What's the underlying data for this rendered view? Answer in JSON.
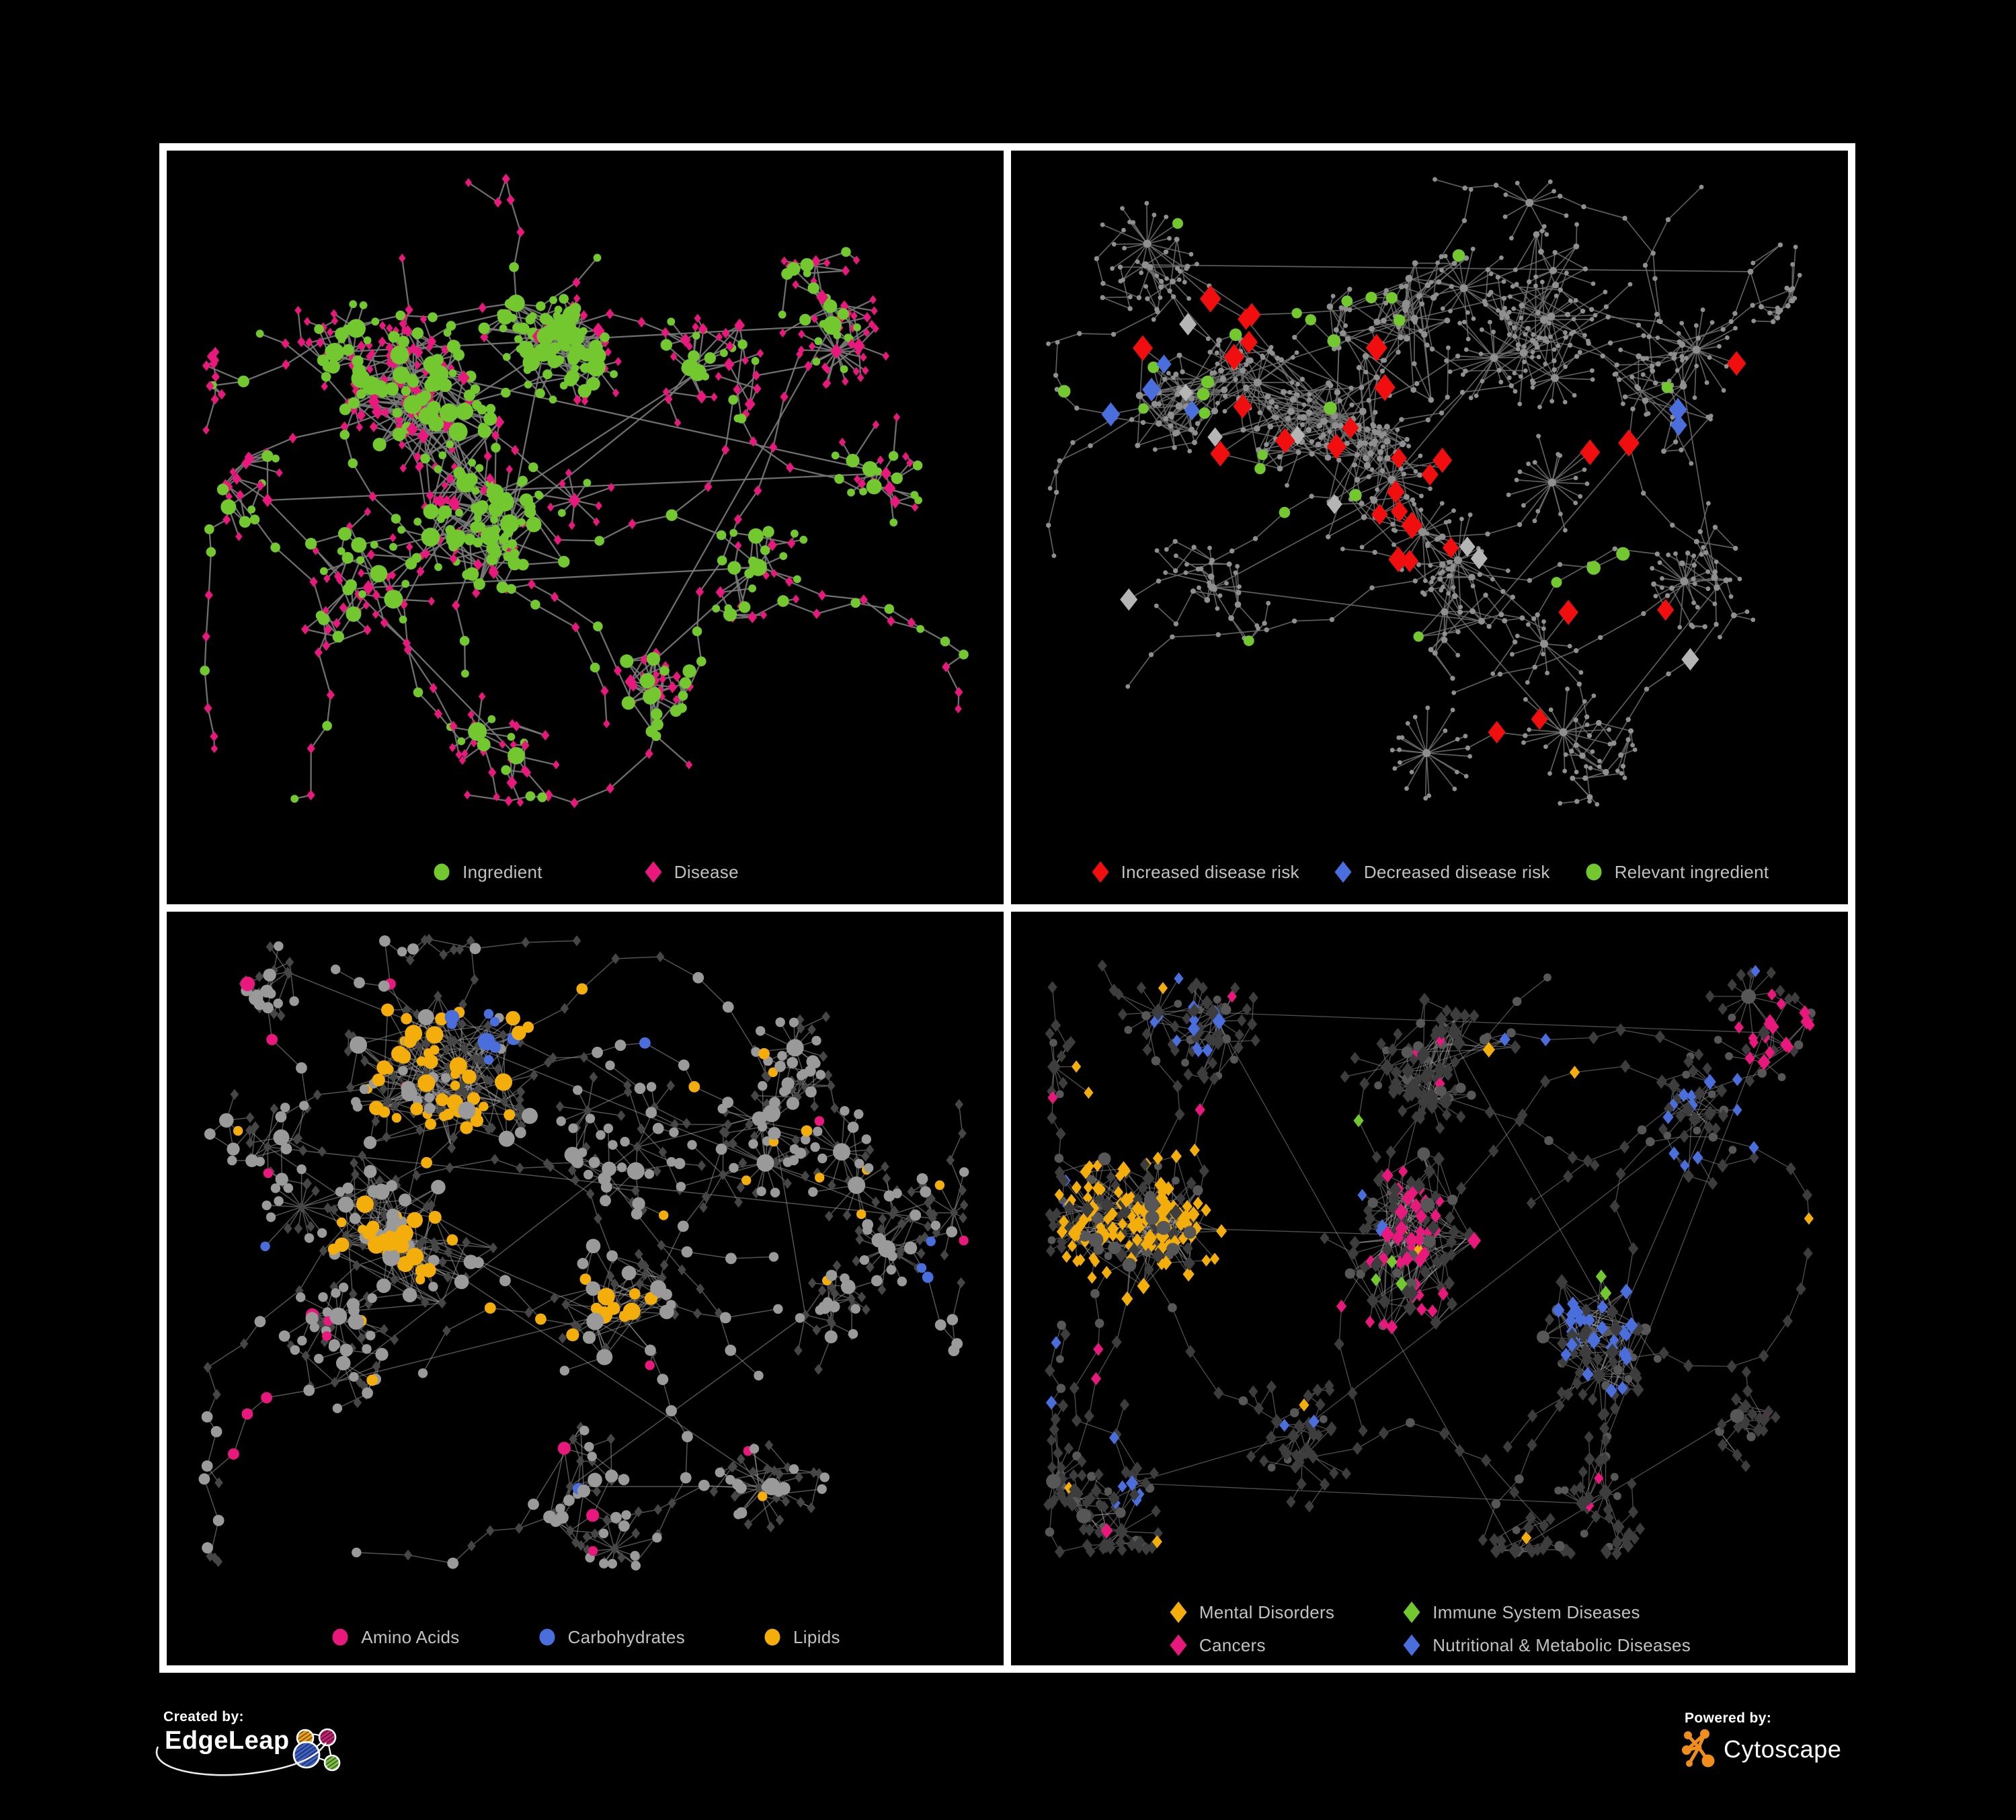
{
  "poster": {
    "background": "#000000",
    "panel_border": "#ffffff",
    "legend_text_color": "#c1c1c1"
  },
  "branding": {
    "created_by_label": "Created by:",
    "edgeleap_name": "EdgeLeap",
    "powered_by_label": "Powered by:",
    "cytoscape_name": "Cytoscape",
    "icons": {
      "edgeleap_logo": "hatched-network-circles",
      "cytoscape_logo": "orange-network-glyph"
    }
  },
  "palette": {
    "green": "#72c82e",
    "pink": "#e8187c",
    "red": "#f10e0e",
    "blue": "#4a6fdc",
    "orange": "#f4ae0c",
    "silver": "#b5b5b5",
    "grayNode": "#9a9a9a",
    "trBase": "#8f8f8f",
    "dimDiamond": "#464646",
    "dimDiamondBR": "#3d3d3d",
    "dimCircle": "#575757",
    "edgeTL": "#7a7a7a",
    "edgeTR": "#6f6f6f",
    "edgeBL": "#989898",
    "edgeBR": "#9d9d9d"
  },
  "panels": [
    {
      "id": "ingredient-disease",
      "legend": [
        {
          "label": "Ingredient",
          "shape": "circle",
          "color": "#72c82e"
        },
        {
          "label": "Disease",
          "shape": "diamond",
          "color": "#e8187c"
        }
      ],
      "net": {
        "mode": "tl",
        "seed": 11,
        "bounds": [
          55,
          40,
          1190,
          975
        ],
        "step": 50,
        "clusters": [
          [
            420,
            390,
            110,
            150,
            70
          ],
          [
            560,
            300,
            60,
            95,
            50
          ],
          [
            510,
            555,
            55,
            115,
            25
          ],
          [
            790,
            330,
            40,
            100,
            0
          ],
          [
            300,
            650,
            40,
            110,
            0
          ],
          [
            880,
            620,
            30,
            85,
            0
          ],
          [
            690,
            790,
            30,
            85,
            12
          ],
          [
            990,
            260,
            35,
            115,
            0
          ],
          [
            250,
            300,
            35,
            100,
            0
          ],
          [
            1070,
            480,
            25,
            85,
            0
          ],
          [
            150,
            520,
            20,
            70,
            0
          ],
          [
            520,
            900,
            22,
            80,
            0
          ]
        ],
        "chains": 26,
        "fans": 14,
        "fanMin": 6,
        "fanMax": 14,
        "fanR": 42,
        "edge": [
          "edgeTL",
          2.3,
          0.9
        ],
        "zones": [
          [
            547,
            303,
            85,
            "green",
            0.85
          ],
          [
            500,
            545,
            60,
            "green",
            0.7
          ],
          [
            800,
            735,
            50,
            "green",
            0.9
          ],
          [
            360,
            390,
            70,
            "pink",
            0.35
          ]
        ]
      }
    },
    {
      "id": "disease-risk",
      "legend": [
        {
          "label": "Increased disease risk",
          "shape": "diamond",
          "color": "#f10e0e"
        },
        {
          "label": "Decreased disease risk",
          "shape": "diamond",
          "color": "#4a6fdc"
        },
        {
          "label": "Relevant ingredient",
          "shape": "circle",
          "color": "#72c82e"
        }
      ],
      "net": {
        "mode": "tr",
        "seed": 7,
        "bounds": [
          55,
          40,
          1190,
          975
        ],
        "step": 50,
        "base": "trBase",
        "clusters": [
          [
            420,
            370,
            100,
            150,
            70
          ],
          [
            260,
            360,
            55,
            110,
            40
          ],
          [
            600,
            250,
            55,
            125,
            30
          ],
          [
            810,
            200,
            40,
            105,
            8
          ],
          [
            540,
            520,
            50,
            120,
            12
          ],
          [
            300,
            650,
            38,
            110,
            0
          ],
          [
            700,
            700,
            40,
            100,
            10
          ],
          [
            1000,
            350,
            38,
            110,
            0
          ],
          [
            1050,
            650,
            28,
            90,
            0
          ],
          [
            850,
            900,
            28,
            95,
            0
          ],
          [
            200,
            170,
            28,
            90,
            0
          ],
          [
            1100,
            180,
            22,
            80,
            0
          ]
        ],
        "chains": 30,
        "fans": 18,
        "fanMin": 8,
        "fanMax": 22,
        "fanR": 55,
        "edge": [
          "edgeTR",
          1.7,
          0.85
        ],
        "zones": [],
        "highlights": [
          {
            "shape": "diamond",
            "color": "red",
            "s": 14,
            "pts": [
              [
                430,
                400,
                11,
                150
              ],
              [
                560,
                520,
                6,
                110
              ],
              [
                300,
                295,
                3,
                80
              ],
              [
                640,
                440,
                2,
                50
              ],
              [
                905,
                440,
                2,
                50
              ],
              [
                760,
                880,
                2,
                60
              ],
              [
                1120,
                300,
                1,
                30
              ],
              [
                830,
                680,
                1,
                40
              ],
              [
                1010,
                680,
                1,
                40
              ],
              [
                170,
                320,
                1,
                30
              ]
            ]
          },
          {
            "shape": "diamond",
            "color": "blue",
            "s": 13,
            "pts": [
              [
                200,
                345,
                4,
                70
              ],
              [
                1008,
                385,
                2,
                26
              ]
            ]
          },
          {
            "shape": "diamond",
            "color": "silver",
            "s": 12,
            "pts": [
              [
                430,
                390,
                5,
                170
              ],
              [
                620,
                650,
                2,
                100
              ],
              [
                185,
                620,
                1,
                40
              ],
              [
                950,
                745,
                1,
                50
              ]
            ]
          },
          {
            "shape": "circle",
            "color": "green",
            "s": 9,
            "pts": [
              [
                420,
                380,
                10,
                160
              ],
              [
                295,
                300,
                5,
                100
              ],
              [
                560,
                250,
                3,
                90
              ],
              [
                880,
                630,
                3,
                45
              ],
              [
                990,
                380,
                1,
                30
              ],
              [
                140,
                350,
                1,
                30
              ],
              [
                330,
                800,
                1,
                30
              ],
              [
                560,
                750,
                1,
                30
              ],
              [
                240,
                130,
                1,
                30
              ],
              [
                640,
                160,
                1,
                30
              ]
            ]
          }
        ]
      }
    },
    {
      "id": "nutrient-classes",
      "legend": [
        {
          "label": "Amino Acids",
          "shape": "circle",
          "color": "#e8187c"
        },
        {
          "label": "Carbohydrates",
          "shape": "circle",
          "color": "#4a6fdc"
        },
        {
          "label": "Lipids",
          "shape": "circle",
          "color": "#f4ae0c"
        }
      ],
      "net": {
        "mode": "bl",
        "seed": 23,
        "bounds": [
          55,
          40,
          1190,
          975
        ],
        "step": 50,
        "clusters": [
          [
            400,
            250,
            110,
            150,
            85
          ],
          [
            350,
            470,
            95,
            140,
            70
          ],
          [
            650,
            600,
            45,
            105,
            28
          ],
          [
            250,
            700,
            38,
            110,
            0
          ],
          [
            700,
            350,
            38,
            110,
            0
          ],
          [
            900,
            300,
            35,
            105,
            0
          ],
          [
            950,
            600,
            28,
            90,
            0
          ],
          [
            600,
            855,
            32,
            100,
            8
          ],
          [
            900,
            855,
            28,
            90,
            0
          ],
          [
            150,
            350,
            28,
            90,
            0
          ],
          [
            1080,
            450,
            20,
            70,
            0
          ],
          [
            180,
            90,
            20,
            70,
            0
          ]
        ],
        "chains": 26,
        "fans": 16,
        "fanMin": 7,
        "fanMax": 18,
        "fanR": 48,
        "edge": [
          "edgeBL",
          1.5,
          0.55
        ],
        "zones": [
          [
            470,
            185,
            62,
            "blue",
            0.38
          ],
          [
            420,
            230,
            135,
            "orange",
            0.6
          ],
          [
            350,
            470,
            115,
            "orange",
            0.42
          ],
          [
            650,
            600,
            62,
            "orange",
            0.85
          ],
          [
            150,
            780,
            70,
            "pink",
            0.5
          ],
          [
            560,
            770,
            45,
            "pink",
            0.55
          ],
          [
            1100,
            755,
            65,
            "pink",
            0.5
          ],
          [
            730,
            80,
            45,
            "pink",
            0.7
          ],
          [
            105,
            90,
            40,
            "pink",
            0.6
          ],
          [
            35,
            148,
            26,
            "blue",
            1
          ],
          [
            1145,
            520,
            35,
            "blue",
            0.9
          ],
          [
            430,
            645,
            30,
            "blue",
            0.5
          ],
          [
            900,
            300,
            140,
            "orange",
            0.12
          ],
          [
            0,
            0,
            2000,
            "orange",
            0.05
          ],
          [
            0,
            0,
            2000,
            "pink",
            0.045
          ],
          [
            0,
            0,
            2000,
            "blue",
            0.02
          ]
        ]
      }
    },
    {
      "id": "disease-categories",
      "legend": [
        {
          "label": "Mental Disorders",
          "shape": "diamond",
          "color": "#f4ae0c"
        },
        {
          "label": "Immune System Diseases",
          "shape": "diamond",
          "color": "#72c82e"
        },
        {
          "label": "Cancers",
          "shape": "diamond",
          "color": "#e8187c"
        },
        {
          "label": "Nutritional & Metabolic Diseases",
          "shape": "diamond",
          "color": "#4a6fdc"
        }
      ],
      "net": {
        "mode": "br",
        "seed": 41,
        "bounds": [
          55,
          35,
          1190,
          955
        ],
        "step": 48,
        "clusters": [
          [
            230,
            470,
            115,
            155,
            95
          ],
          [
            560,
            480,
            100,
            150,
            70
          ],
          [
            640,
            160,
            55,
            130,
            35
          ],
          [
            900,
            620,
            55,
            105,
            55
          ],
          [
            1040,
            300,
            38,
            100,
            6
          ],
          [
            420,
            780,
            38,
            110,
            0
          ],
          [
            180,
            850,
            32,
            100,
            0
          ],
          [
            850,
            880,
            32,
            100,
            0
          ],
          [
            1120,
            180,
            26,
            80,
            0
          ],
          [
            300,
            150,
            38,
            110,
            0
          ],
          [
            750,
            950,
            22,
            80,
            0
          ],
          [
            1080,
            750,
            22,
            80,
            0
          ]
        ],
        "chains": 26,
        "fans": 16,
        "fanMin": 7,
        "fanMax": 18,
        "fanR": 46,
        "edge": [
          "edgeBR",
          1.3,
          0.5
        ],
        "zones": [
          [
            540,
            320,
            32,
            "green",
            0.9
          ],
          [
            565,
            545,
            26,
            "green",
            0.9
          ],
          [
            700,
            425,
            26,
            "green",
            0.9
          ],
          [
            880,
            555,
            22,
            "green",
            0.8
          ],
          [
            420,
            950,
            26,
            "green",
            0.9
          ],
          [
            655,
            115,
            22,
            "green",
            0.8
          ],
          [
            230,
            470,
            155,
            "orange",
            0.75
          ],
          [
            120,
            255,
            52,
            "orange",
            0.5
          ],
          [
            425,
            62,
            32,
            "orange",
            0.9
          ],
          [
            700,
            185,
            32,
            "orange",
            0.3
          ],
          [
            460,
            740,
            26,
            "orange",
            0.8
          ],
          [
            1050,
            815,
            30,
            "orange",
            0.5
          ],
          [
            560,
            495,
            130,
            "pink",
            0.55
          ],
          [
            480,
            300,
            62,
            "pink",
            0.4
          ],
          [
            1130,
            175,
            62,
            "pink",
            0.5
          ],
          [
            640,
            945,
            42,
            "pink",
            0.5
          ],
          [
            215,
            955,
            50,
            "pink",
            0.45
          ],
          [
            130,
            680,
            32,
            "pink",
            0.6
          ],
          [
            900,
            620,
            95,
            "blue",
            0.65
          ],
          [
            1050,
            320,
            82,
            "blue",
            0.5
          ],
          [
            770,
            120,
            85,
            "blue",
            0.35
          ],
          [
            545,
            62,
            42,
            "blue",
            0.45
          ],
          [
            380,
            660,
            40,
            "blue",
            0.45
          ],
          [
            200,
            880,
            52,
            "blue",
            0.4
          ],
          [
            1120,
            470,
            52,
            "blue",
            0.5
          ],
          [
            300,
            150,
            90,
            "blue",
            0.25
          ],
          [
            0,
            0,
            2000,
            "blue",
            0.035
          ],
          [
            0,
            0,
            2000,
            "orange",
            0.015
          ],
          [
            0,
            0,
            2000,
            "pink",
            0.012
          ]
        ]
      }
    }
  ]
}
